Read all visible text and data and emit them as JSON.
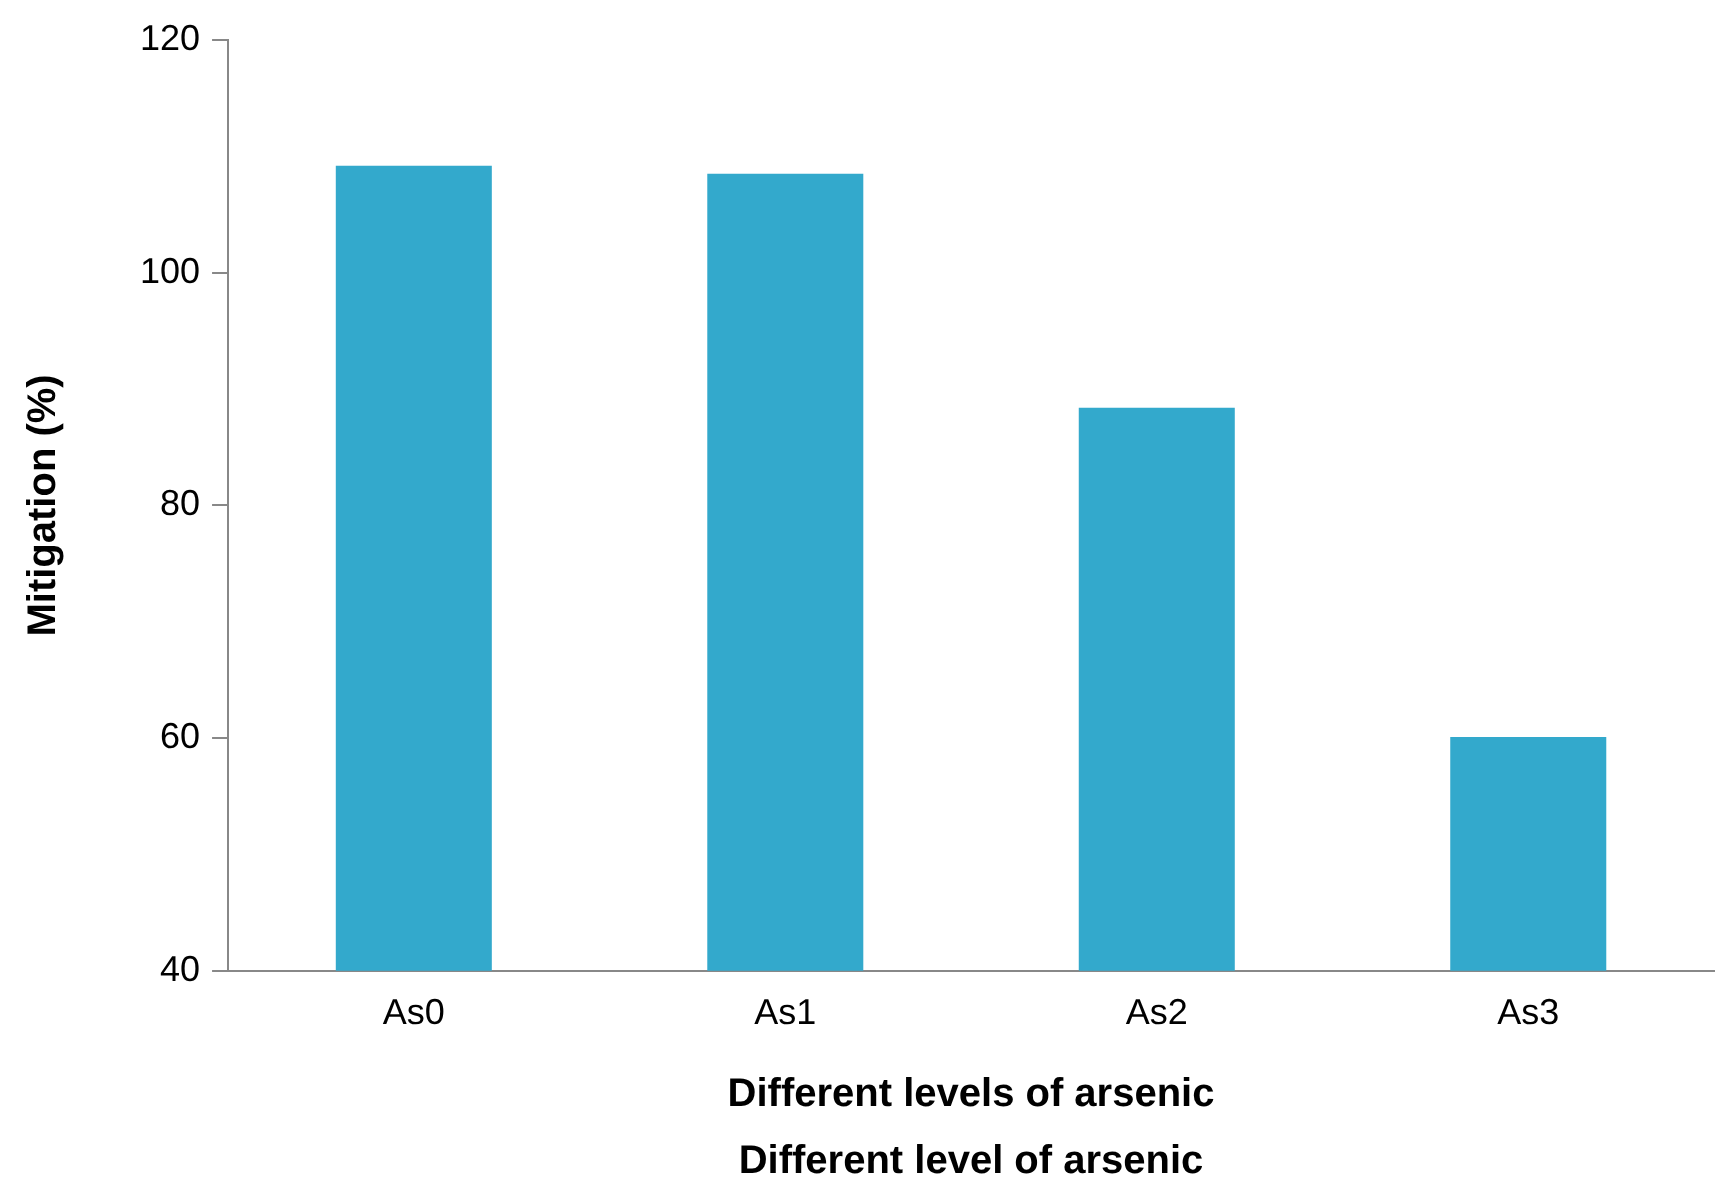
{
  "chart_data": {
    "type": "bar",
    "categories": [
      "As0",
      "As1",
      "As2",
      "As3"
    ],
    "values": [
      109.2,
      108.5,
      88.4,
      60.1
    ],
    "color": "#33a9cc",
    "ylabel": "Mitigation (%)",
    "xlabel": "Different level of arsenic",
    "annotations": [
      "Different levels of arsenic"
    ],
    "ylim": [
      40,
      120
    ],
    "yticks": [
      40,
      60,
      80,
      100,
      120
    ],
    "grid": false,
    "legend": false
  }
}
